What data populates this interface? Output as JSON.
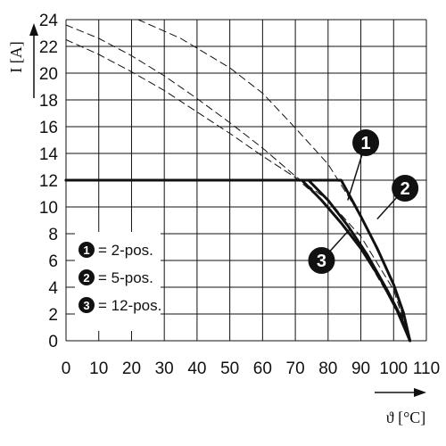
{
  "chart_data": {
    "type": "line",
    "title": "",
    "xlabel": "ϑ [°C]",
    "ylabel": "I [A]",
    "xlim": [
      0,
      110
    ],
    "ylim": [
      0,
      24
    ],
    "x_ticks": [
      0,
      10,
      20,
      30,
      40,
      50,
      60,
      70,
      80,
      90,
      100,
      110
    ],
    "y_ticks": [
      0,
      2,
      4,
      6,
      8,
      10,
      12,
      14,
      16,
      18,
      20,
      22,
      24
    ],
    "grid": true,
    "legend_position": "bottom-left",
    "series": [
      {
        "marker": "1",
        "label": "= 2-pos.",
        "style": "solid",
        "points": [
          [
            0,
            12
          ],
          [
            84,
            12
          ],
          [
            90,
            9.3
          ],
          [
            95,
            6.9
          ],
          [
            100,
            4.2
          ],
          [
            103,
            2.1
          ],
          [
            105,
            0
          ]
        ]
      },
      {
        "marker": "2",
        "label": "= 5-pos.",
        "style": "solid",
        "points": [
          [
            0,
            12
          ],
          [
            74,
            12
          ],
          [
            80,
            10.5
          ],
          [
            86,
            8.6
          ],
          [
            92,
            6.4
          ],
          [
            98,
            3.8
          ],
          [
            102,
            1.9
          ],
          [
            105,
            0
          ]
        ]
      },
      {
        "marker": "3",
        "label": "= 12-pos.",
        "style": "solid",
        "points": [
          [
            0,
            12
          ],
          [
            72,
            12
          ],
          [
            78,
            10.5
          ],
          [
            84,
            8.8
          ],
          [
            90,
            6.9
          ],
          [
            96,
            4.6
          ],
          [
            101,
            2.3
          ],
          [
            105,
            0
          ]
        ]
      },
      {
        "marker": "1",
        "style": "dashed",
        "points": [
          [
            22,
            24
          ],
          [
            35,
            22.6
          ],
          [
            50,
            20.4
          ],
          [
            60,
            18.5
          ],
          [
            70,
            15.9
          ],
          [
            80,
            13.2
          ],
          [
            90,
            9.3
          ],
          [
            100,
            4.2
          ],
          [
            105,
            0
          ]
        ]
      },
      {
        "marker": "2",
        "style": "dashed",
        "points": [
          [
            0,
            23.6
          ],
          [
            10,
            22.6
          ],
          [
            20,
            21.3
          ],
          [
            30,
            19.8
          ],
          [
            40,
            18.1
          ],
          [
            50,
            16.3
          ],
          [
            60,
            14.4
          ],
          [
            70,
            12.3
          ],
          [
            80,
            10.5
          ],
          [
            90,
            7.8
          ],
          [
            100,
            3.8
          ],
          [
            105,
            0
          ]
        ]
      },
      {
        "marker": "3",
        "style": "dashed",
        "points": [
          [
            0,
            22.5
          ],
          [
            10,
            21.4
          ],
          [
            20,
            20.1
          ],
          [
            30,
            18.7
          ],
          [
            40,
            17.1
          ],
          [
            50,
            15.5
          ],
          [
            60,
            13.8
          ],
          [
            70,
            12.2
          ],
          [
            78,
            10.5
          ],
          [
            90,
            6.9
          ],
          [
            101,
            2.3
          ],
          [
            105,
            0
          ]
        ]
      }
    ],
    "curve_markers": [
      {
        "label": "1",
        "at": [
          91.5,
          14.8
        ],
        "leader_to": [
          86,
          10.5
        ]
      },
      {
        "label": "2",
        "at": [
          103.5,
          11.4
        ],
        "leader_to": [
          95,
          9.1
        ]
      },
      {
        "label": "3",
        "at": [
          78,
          6.0
        ],
        "leader_to": [
          86.5,
          8.3
        ]
      }
    ],
    "legend": [
      {
        "marker": "1",
        "text": "= 2-pos."
      },
      {
        "marker": "2",
        "text": "= 5-pos."
      },
      {
        "marker": "3",
        "text": "= 12-pos."
      }
    ],
    "colors": {
      "line": "#111111",
      "grid": "#111111",
      "marker_fill": "#111111",
      "background": "#ffffff"
    }
  }
}
